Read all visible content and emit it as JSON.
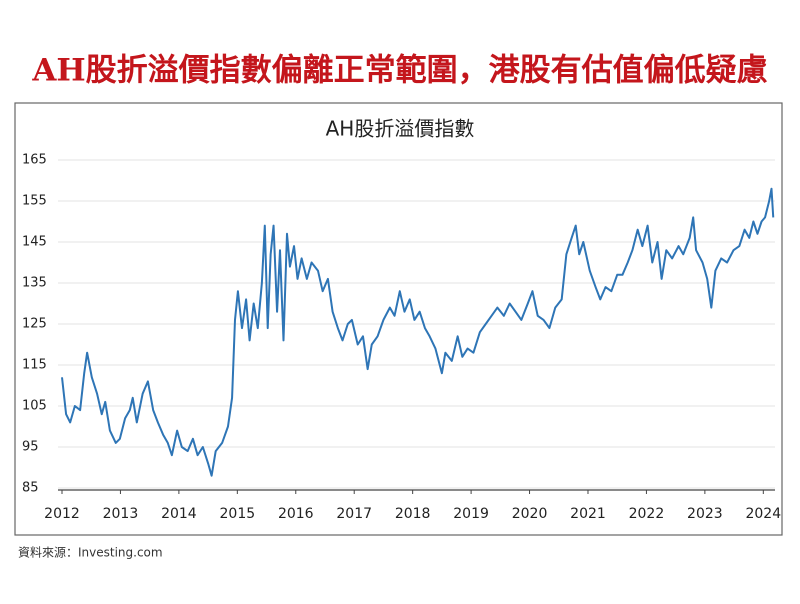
{
  "headline": "AH股折溢價指數偏離正常範圍，港股有估值偏低疑慮",
  "source": "資料來源：Investing.com",
  "chart_data": {
    "type": "line",
    "title": "AH股折溢價指數",
    "x": [
      2012.0,
      2012.07,
      2012.14,
      2012.22,
      2012.31,
      2012.38,
      2012.43,
      2012.51,
      2012.6,
      2012.68,
      2012.74,
      2012.82,
      2012.92,
      2012.99,
      2013.08,
      2013.16,
      2013.21,
      2013.28,
      2013.38,
      2013.47,
      2013.56,
      2013.64,
      2013.73,
      2013.81,
      2013.88,
      2013.97,
      2014.05,
      2014.15,
      2014.24,
      2014.32,
      2014.41,
      2014.5,
      2014.56,
      2014.63,
      2014.74,
      2014.84,
      2014.91,
      2014.96,
      2015.01,
      2015.08,
      2015.15,
      2015.21,
      2015.28,
      2015.35,
      2015.42,
      2015.47,
      2015.52,
      2015.57,
      2015.62,
      2015.68,
      2015.73,
      2015.79,
      2015.85,
      2015.9,
      2015.97,
      2016.03,
      2016.1,
      2016.19,
      2016.27,
      2016.38,
      2016.46,
      2016.55,
      2016.63,
      2016.72,
      2016.8,
      2016.89,
      2016.96,
      2017.06,
      2017.15,
      2017.23,
      2017.3,
      2017.4,
      2017.5,
      2017.61,
      2017.69,
      2017.78,
      2017.86,
      2017.95,
      2018.03,
      2018.12,
      2018.21,
      2018.29,
      2018.39,
      2018.5,
      2018.56,
      2018.67,
      2018.77,
      2018.85,
      2018.94,
      2019.04,
      2019.15,
      2019.25,
      2019.35,
      2019.45,
      2019.56,
      2019.66,
      2019.76,
      2019.86,
      2019.97,
      2020.05,
      2020.14,
      2020.24,
      2020.34,
      2020.44,
      2020.55,
      2020.63,
      2020.72,
      2020.79,
      2020.85,
      2020.92,
      2021.03,
      2021.13,
      2021.21,
      2021.3,
      2021.4,
      2021.5,
      2021.59,
      2021.68,
      2021.76,
      2021.85,
      2021.93,
      2022.02,
      2022.1,
      2022.19,
      2022.26,
      2022.34,
      2022.44,
      2022.55,
      2022.63,
      2022.74,
      2022.8,
      2022.85,
      2022.96,
      2023.04,
      2023.11,
      2023.18,
      2023.28,
      2023.38,
      2023.49,
      2023.59,
      2023.68,
      2023.76,
      2023.83,
      2023.9,
      2023.97,
      2024.03,
      2024.1,
      2024.14,
      2024.17
    ],
    "series": [
      {
        "name": "AH股折溢價指數",
        "color": "#2e75b6",
        "values": [
          112,
          103,
          101,
          105,
          104,
          113,
          118,
          112,
          108,
          103,
          106,
          99,
          96,
          97,
          102,
          104,
          107,
          101,
          108,
          111,
          104,
          101,
          98,
          96,
          93,
          99,
          95,
          94,
          97,
          93,
          95,
          91,
          88,
          94,
          96,
          100,
          107,
          126,
          133,
          124,
          131,
          121,
          130,
          124,
          135,
          149,
          124,
          142,
          149,
          128,
          143,
          121,
          147,
          139,
          144,
          136,
          141,
          136,
          140,
          138,
          133,
          136,
          128,
          124,
          121,
          125,
          126,
          120,
          122,
          114,
          120,
          122,
          126,
          129,
          127,
          133,
          128,
          131,
          126,
          128,
          124,
          122,
          119,
          113,
          118,
          116,
          122,
          117,
          119,
          118,
          123,
          125,
          127,
          129,
          127,
          130,
          128,
          126,
          130,
          133,
          127,
          126,
          124,
          129,
          131,
          142,
          146,
          149,
          142,
          145,
          138,
          134,
          131,
          134,
          133,
          137,
          137,
          140,
          143,
          148,
          144,
          149,
          140,
          145,
          136,
          143,
          141,
          144,
          142,
          146,
          151,
          143,
          140,
          136,
          129,
          138,
          141,
          140,
          143,
          144,
          148,
          146,
          150,
          147,
          150,
          151,
          155,
          158,
          151
        ]
      }
    ],
    "xlim": [
      2012,
      2024.2
    ],
    "xticks": [
      2012,
      2013,
      2014,
      2015,
      2016,
      2017,
      2018,
      2019,
      2020,
      2021,
      2022,
      2023,
      2024
    ],
    "ylim": [
      85,
      165
    ],
    "yticks": [
      85,
      95,
      105,
      115,
      125,
      135,
      145,
      155,
      165
    ],
    "grid": true
  }
}
